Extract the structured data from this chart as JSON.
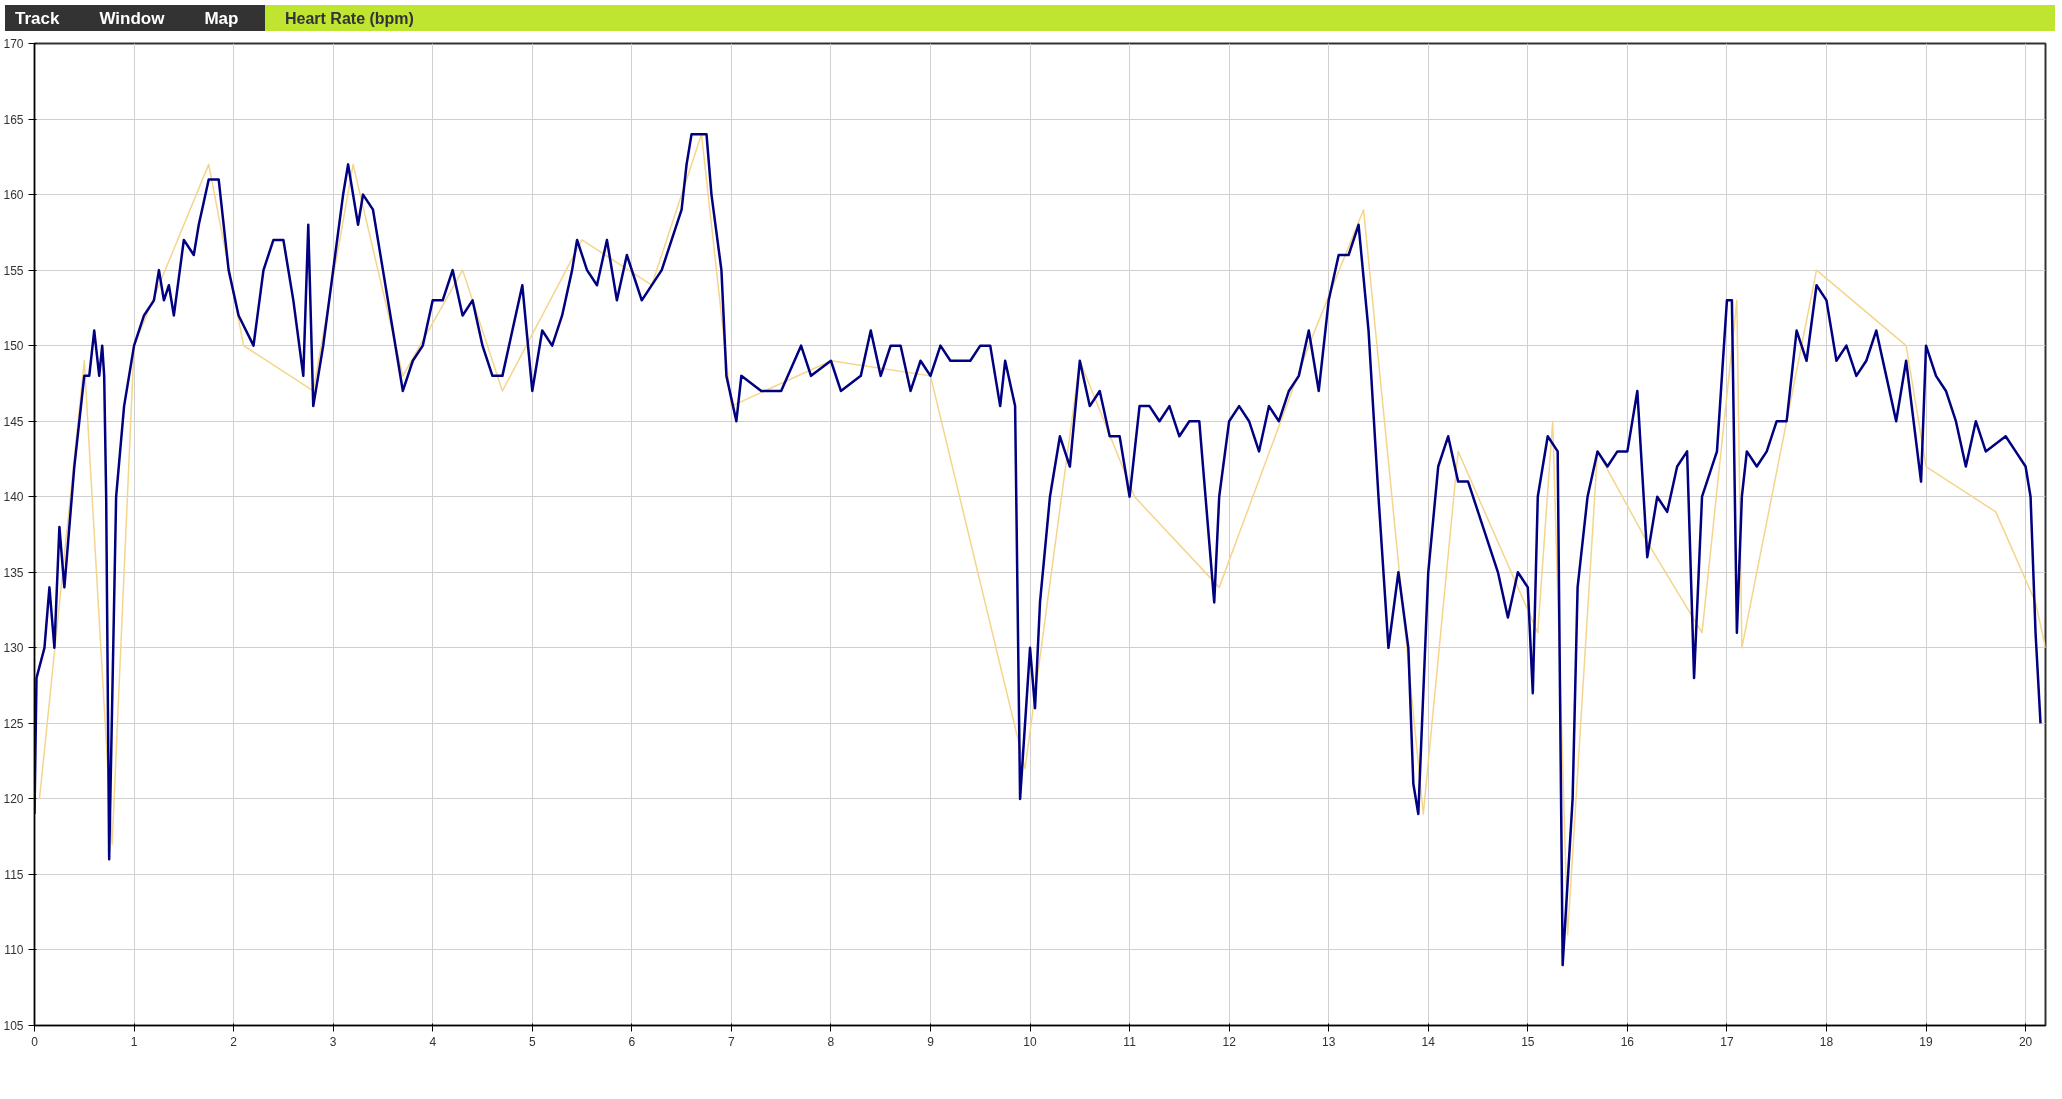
{
  "chart_data": {
    "type": "line",
    "title": "Heart Rate (bpm)",
    "annotations": [
      "Track",
      "Window",
      "Map"
    ],
    "xlim": [
      0,
      20.2
    ],
    "ylim": [
      105,
      170
    ],
    "xticks": [
      0,
      1,
      2,
      3,
      4,
      5,
      6,
      7,
      8,
      9,
      10,
      11,
      12,
      13,
      14,
      15,
      16,
      17,
      18,
      19,
      20
    ],
    "yticks": [
      105,
      110,
      115,
      120,
      125,
      130,
      135,
      140,
      145,
      150,
      155,
      160,
      165,
      170
    ],
    "grid": true,
    "series": [
      {
        "color": "#f5d58c",
        "x": [
          0.05,
          0.5,
          0.78,
          1.0,
          1.75,
          2.1,
          2.8,
          3.2,
          3.7,
          4.3,
          4.7,
          5.5,
          6.2,
          6.7,
          7.0,
          8.0,
          9.0,
          9.95,
          10.5,
          11.05,
          11.9,
          12.8,
          13.35,
          13.95,
          14.3,
          15.1,
          15.25,
          15.4,
          15.7,
          16.2,
          16.75,
          17.1,
          17.15,
          17.9,
          18.8,
          19.0,
          19.7,
          20.1,
          20.2
        ],
        "values": [
          120,
          149,
          117,
          150,
          162,
          150,
          147,
          162,
          148,
          155,
          147,
          157,
          154,
          164,
          146,
          149,
          148,
          122,
          149,
          140,
          134,
          150,
          159,
          119,
          143,
          131,
          145,
          111,
          143,
          137,
          131,
          153,
          130,
          155,
          150,
          142,
          139,
          133,
          130
        ]
      },
      {
        "color": "#000080",
        "x": [
          0,
          0.02,
          0.1,
          0.15,
          0.2,
          0.25,
          0.3,
          0.4,
          0.5,
          0.55,
          0.6,
          0.65,
          0.68,
          0.7,
          0.72,
          0.75,
          0.82,
          0.9,
          1.0,
          1.1,
          1.2,
          1.25,
          1.3,
          1.35,
          1.4,
          1.5,
          1.6,
          1.65,
          1.75,
          1.85,
          1.95,
          2.05,
          2.2,
          2.3,
          2.4,
          2.5,
          2.6,
          2.7,
          2.75,
          2.8,
          2.9,
          3.0,
          3.1,
          3.15,
          3.25,
          3.3,
          3.4,
          3.5,
          3.6,
          3.7,
          3.8,
          3.9,
          4.0,
          4.1,
          4.2,
          4.3,
          4.4,
          4.5,
          4.6,
          4.7,
          4.8,
          4.9,
          5.0,
          5.1,
          5.2,
          5.3,
          5.4,
          5.45,
          5.55,
          5.65,
          5.75,
          5.85,
          5.95,
          6.1,
          6.3,
          6.4,
          6.5,
          6.55,
          6.6,
          6.75,
          6.8,
          6.9,
          6.95,
          7.05,
          7.1,
          7.3,
          7.5,
          7.7,
          7.8,
          8.0,
          8.1,
          8.3,
          8.4,
          8.5,
          8.6,
          8.7,
          8.8,
          8.9,
          9.0,
          9.1,
          9.2,
          9.4,
          9.5,
          9.6,
          9.7,
          9.75,
          9.85,
          9.9,
          10.0,
          10.05,
          10.1,
          10.2,
          10.3,
          10.4,
          10.5,
          10.6,
          10.7,
          10.8,
          10.9,
          11.0,
          11.1,
          11.2,
          11.3,
          11.4,
          11.5,
          11.6,
          11.7,
          11.75,
          11.85,
          11.9,
          12.0,
          12.1,
          12.2,
          12.3,
          12.4,
          12.5,
          12.6,
          12.7,
          12.8,
          12.9,
          13.0,
          13.1,
          13.2,
          13.3,
          13.4,
          13.5,
          13.6,
          13.7,
          13.8,
          13.85,
          13.9,
          14.0,
          14.1,
          14.2,
          14.3,
          14.4,
          14.5,
          14.6,
          14.7,
          14.8,
          14.9,
          15.0,
          15.05,
          15.1,
          15.2,
          15.3,
          15.35,
          15.45,
          15.5,
          15.6,
          15.7,
          15.8,
          15.9,
          16.0,
          16.1,
          16.2,
          16.3,
          16.4,
          16.5,
          16.6,
          16.67,
          16.75,
          16.9,
          17.0,
          17.05,
          17.1,
          17.15,
          17.2,
          17.3,
          17.4,
          17.5,
          17.6,
          17.7,
          17.8,
          17.9,
          18.0,
          18.1,
          18.2,
          18.3,
          18.4,
          18.5,
          18.6,
          18.7,
          18.8,
          18.95,
          19.0,
          19.1,
          19.2,
          19.3,
          19.4,
          19.5,
          19.6,
          19.8,
          19.9,
          20.0,
          20.05,
          20.1,
          20.15
        ],
        "values": [
          119,
          128,
          130,
          134,
          130,
          138,
          134,
          142,
          148,
          148,
          151,
          148,
          150,
          148,
          140,
          116,
          140,
          146,
          150,
          152,
          153,
          155,
          153,
          154,
          152,
          157,
          156,
          158,
          161,
          161,
          155,
          152,
          150,
          155,
          157,
          157,
          153,
          148,
          158,
          146,
          150,
          155,
          160,
          162,
          158,
          160,
          159,
          155,
          151,
          147,
          149,
          150,
          153,
          153,
          155,
          152,
          153,
          150,
          148,
          148,
          151,
          154,
          147,
          151,
          150,
          152,
          155,
          157,
          155,
          154,
          157,
          153,
          156,
          153,
          155,
          157,
          159,
          162,
          164,
          164,
          160,
          155,
          148,
          145,
          148,
          147,
          147,
          150,
          148,
          149,
          147,
          148,
          151,
          148,
          150,
          150,
          147,
          149,
          148,
          150,
          149,
          149,
          150,
          150,
          146,
          149,
          146,
          120,
          130,
          126,
          133,
          140,
          144,
          142,
          149,
          146,
          147,
          144,
          144,
          140,
          146,
          146,
          145,
          146,
          144,
          145,
          145,
          141,
          133,
          140,
          145,
          146,
          145,
          143,
          146,
          145,
          147,
          148,
          151,
          147,
          153,
          156,
          156,
          158,
          151,
          140,
          130,
          135,
          130,
          121,
          119,
          135,
          142,
          144,
          141,
          141,
          139,
          137,
          135,
          132,
          135,
          134,
          127,
          140,
          144,
          143,
          109,
          120,
          134,
          140,
          143,
          142,
          143,
          143,
          147,
          136,
          140,
          139,
          142,
          143,
          128,
          140,
          143,
          153,
          153,
          131,
          140,
          143,
          142,
          143,
          145,
          145,
          151,
          149,
          154,
          153,
          149,
          150,
          148,
          149,
          151,
          148,
          145,
          149,
          141,
          150,
          148,
          147,
          145,
          142,
          145,
          143,
          144,
          143,
          142,
          140,
          131,
          125
        ]
      }
    ]
  }
}
